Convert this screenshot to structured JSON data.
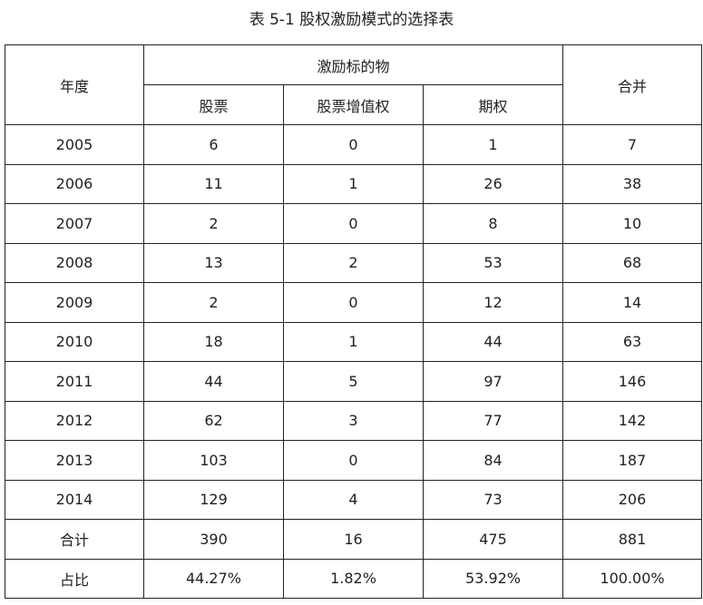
{
  "title": "表 5-1 股权激励模式的选择表",
  "table": {
    "headers": {
      "year": "年度",
      "group": "激励标的物",
      "sub": [
        "股票",
        "股票增值权",
        "期权"
      ],
      "total": "合并"
    },
    "rows": [
      [
        "2005",
        "6",
        "0",
        "1",
        "7"
      ],
      [
        "2006",
        "11",
        "1",
        "26",
        "38"
      ],
      [
        "2007",
        "2",
        "0",
        "8",
        "10"
      ],
      [
        "2008",
        "13",
        "2",
        "53",
        "68"
      ],
      [
        "2009",
        "2",
        "0",
        "12",
        "14"
      ],
      [
        "2010",
        "18",
        "1",
        "44",
        "63"
      ],
      [
        "2011",
        "44",
        "5",
        "97",
        "146"
      ],
      [
        "2012",
        "62",
        "3",
        "77",
        "142"
      ],
      [
        "2013",
        "103",
        "0",
        "84",
        "187"
      ],
      [
        "2014",
        "129",
        "4",
        "73",
        "206"
      ],
      [
        "合计",
        "390",
        "16",
        "475",
        "881"
      ],
      [
        "占比",
        "44.27%",
        "1.82%",
        "53.92%",
        "100.00%"
      ]
    ]
  }
}
